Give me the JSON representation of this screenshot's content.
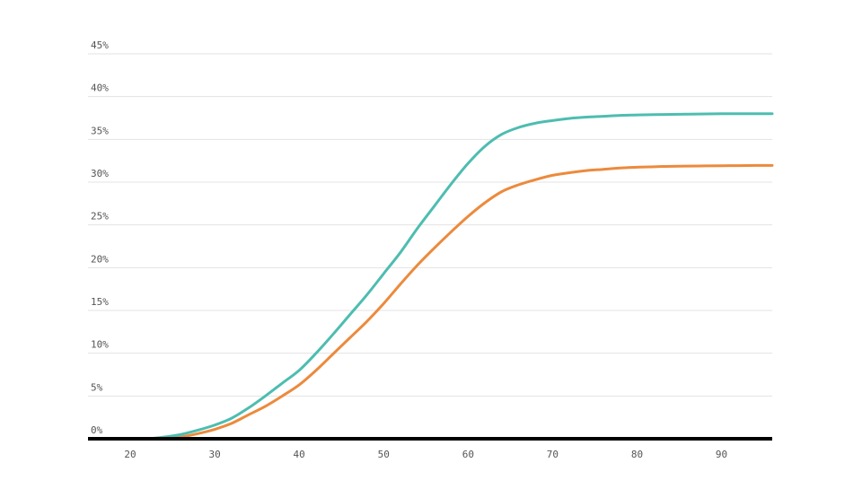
{
  "chart_data": {
    "type": "line",
    "title": "",
    "xlabel": "",
    "ylabel": "",
    "xlim": [
      15,
      96
    ],
    "ylim": [
      0,
      45
    ],
    "x_ticks": [
      20,
      30,
      40,
      50,
      60,
      70,
      80,
      90
    ],
    "x_tick_labels": [
      "20",
      "30",
      "40",
      "50",
      "60",
      "70",
      "80",
      "90"
    ],
    "y_ticks": [
      0,
      5,
      10,
      15,
      20,
      25,
      30,
      35,
      40,
      45
    ],
    "y_tick_labels": [
      "0%",
      "5%",
      "10%",
      "15%",
      "20%",
      "25%",
      "30%",
      "35%",
      "40%",
      "45%"
    ],
    "grid": true,
    "legend": "none",
    "x": [
      18,
      20,
      22,
      24,
      26,
      28,
      30,
      32,
      34,
      36,
      38,
      40,
      42,
      44,
      46,
      48,
      50,
      52,
      54,
      56,
      58,
      60,
      62,
      64,
      66,
      68,
      70,
      72,
      74,
      76,
      78,
      80,
      82,
      84,
      86,
      88,
      90,
      92,
      94,
      96
    ],
    "series": [
      {
        "name": "",
        "color": "#4dbdb0",
        "values": [
          0,
          0,
          0,
          0.2,
          0.5,
          1.0,
          1.6,
          2.4,
          3.6,
          5.0,
          6.5,
          8.0,
          10.0,
          12.2,
          14.5,
          16.8,
          19.3,
          21.8,
          24.6,
          27.2,
          29.8,
          32.2,
          34.2,
          35.6,
          36.4,
          36.9,
          37.2,
          37.45,
          37.6,
          37.7,
          37.8,
          37.85,
          37.9,
          37.92,
          37.95,
          37.97,
          38.0,
          38.0,
          38.0,
          38.0
        ]
      },
      {
        "name": "",
        "color": "#ec8a3c",
        "values": [
          0,
          0,
          0,
          0,
          0.2,
          0.6,
          1.1,
          1.8,
          2.8,
          3.8,
          5.0,
          6.3,
          8.0,
          9.9,
          11.8,
          13.7,
          15.8,
          18.1,
          20.3,
          22.3,
          24.2,
          26.0,
          27.6,
          28.9,
          29.7,
          30.3,
          30.8,
          31.1,
          31.35,
          31.5,
          31.65,
          31.75,
          31.8,
          31.85,
          31.88,
          31.9,
          31.92,
          31.93,
          31.95,
          31.95
        ]
      }
    ]
  }
}
